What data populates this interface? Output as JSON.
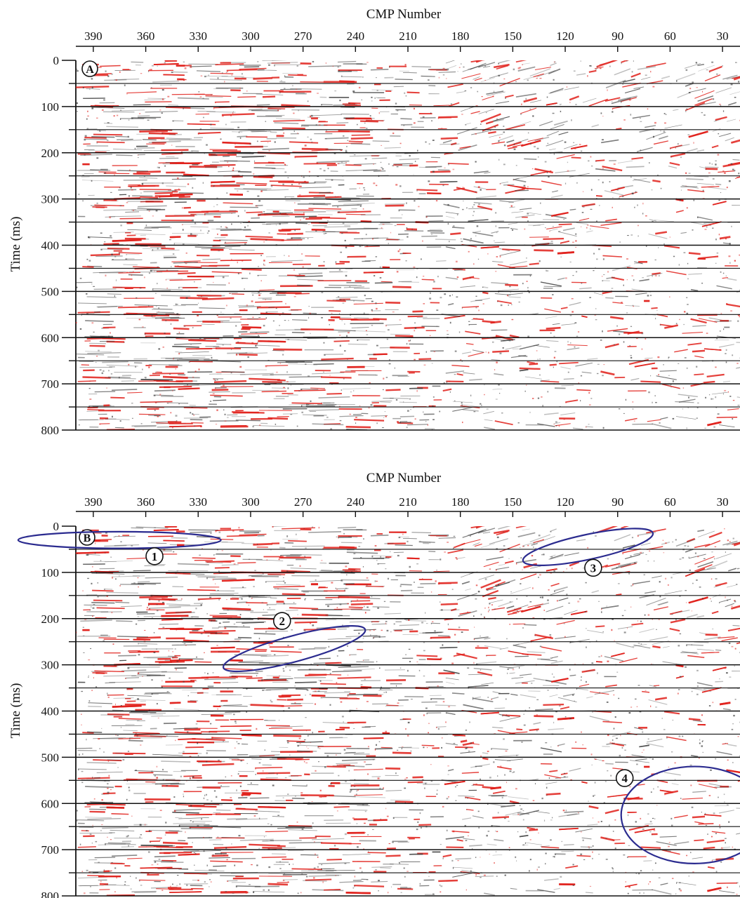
{
  "figure": {
    "colors": {
      "positive_trace": "#e0201a",
      "negative_trace": "#3a3a3a",
      "annotation": "#2b2b8f",
      "axis": "#111111"
    },
    "panels": [
      {
        "id": "A",
        "label": "A",
        "xlabel": "CMP Number",
        "ylabel": "Time (ms)",
        "x_ticks": [
          "390",
          "360",
          "330",
          "300",
          "270",
          "240",
          "210",
          "180",
          "150",
          "120",
          "90",
          "60",
          "30"
        ],
        "y_ticks": [
          "0",
          "100",
          "200",
          "300",
          "400",
          "500",
          "600",
          "700",
          "800"
        ],
        "x_range": [
          400,
          20
        ],
        "y_range": [
          0,
          800
        ],
        "annotations": []
      },
      {
        "id": "B",
        "label": "B",
        "xlabel": "CMP Number",
        "ylabel": "Time (ms)",
        "x_ticks": [
          "390",
          "360",
          "330",
          "300",
          "270",
          "240",
          "210",
          "180",
          "150",
          "120",
          "90",
          "60",
          "30"
        ],
        "y_ticks": [
          "0",
          "100",
          "200",
          "300",
          "400",
          "500",
          "600",
          "700",
          "800"
        ],
        "x_range": [
          400,
          20
        ],
        "y_range": [
          0,
          800
        ],
        "annotations": [
          {
            "label": "1",
            "cmp": 375,
            "time": 30,
            "rx_cmp": 58,
            "ry_time": 18,
            "angle": 0,
            "label_cmp": 355,
            "label_time": 65
          },
          {
            "label": "2",
            "cmp": 275,
            "time": 265,
            "rx_cmp": 42,
            "ry_time": 28,
            "angle": -15,
            "label_cmp": 282,
            "label_time": 205
          },
          {
            "label": "3",
            "cmp": 107,
            "time": 45,
            "rx_cmp": 38,
            "ry_time": 27,
            "angle": -12,
            "label_cmp": 104,
            "label_time": 90
          },
          {
            "label": "4",
            "cmp": 46,
            "time": 625,
            "rx_cmp": 42,
            "ry_time": 105,
            "angle": 0,
            "label_cmp": 86,
            "label_time": 545
          }
        ]
      }
    ]
  }
}
